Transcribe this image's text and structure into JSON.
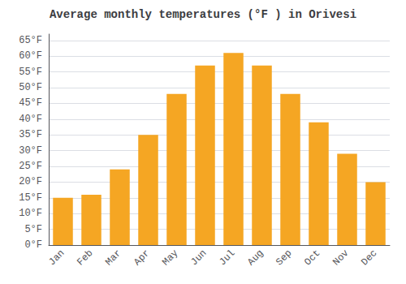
{
  "chart_data": {
    "type": "bar",
    "title": "Average monthly temperatures (°F ) in Orivesi",
    "categories": [
      "Jan",
      "Feb",
      "Mar",
      "Apr",
      "May",
      "Jun",
      "Jul",
      "Aug",
      "Sep",
      "Oct",
      "Nov",
      "Dec"
    ],
    "values": [
      15,
      16,
      24,
      35,
      48,
      57,
      61,
      57,
      48,
      39,
      29,
      20
    ],
    "color": "#F5A623",
    "ylim": [
      0,
      67
    ],
    "yticks": [
      {
        "value": 0,
        "label": "0°F"
      },
      {
        "value": 5,
        "label": "5°F"
      },
      {
        "value": 10,
        "label": "10°F"
      },
      {
        "value": 15,
        "label": "15°F"
      },
      {
        "value": 20,
        "label": "20°F"
      },
      {
        "value": 25,
        "label": "25°F"
      },
      {
        "value": 30,
        "label": "30°F"
      },
      {
        "value": 35,
        "label": "35°F"
      },
      {
        "value": 40,
        "label": "40°F"
      },
      {
        "value": 45,
        "label": "45°F"
      },
      {
        "value": 50,
        "label": "50°F"
      },
      {
        "value": 55,
        "label": "55°F"
      },
      {
        "value": 60,
        "label": "60°F"
      },
      {
        "value": 65,
        "label": "65°F"
      }
    ],
    "grid": true
  }
}
